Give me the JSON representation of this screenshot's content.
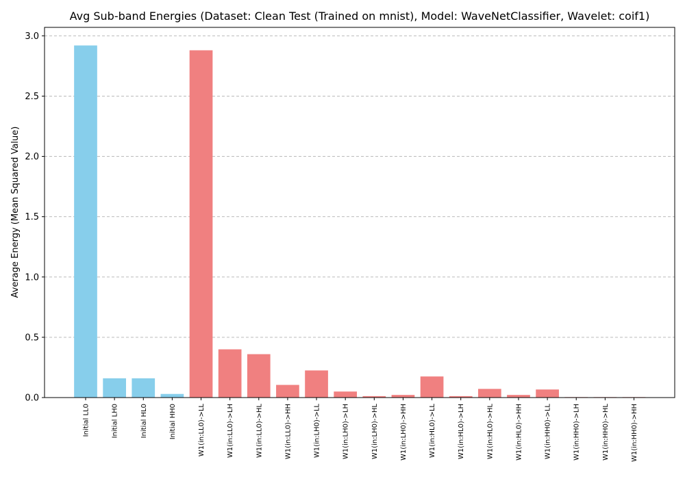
{
  "chart_data": {
    "type": "bar",
    "title": "Avg Sub-band Energies (Dataset: Clean Test (Trained on mnist), Model: WaveNetClassifier, Wavelet: coif1)",
    "xlabel": "",
    "ylabel": "Average Energy (Mean Squared Value)",
    "ylim": [
      0,
      3.07
    ],
    "yticks": [
      0.0,
      0.5,
      1.0,
      1.5,
      2.0,
      2.5,
      3.0
    ],
    "ytick_labels": [
      "0.0",
      "0.5",
      "1.0",
      "1.5",
      "2.0",
      "2.5",
      "3.0"
    ],
    "grid": "y-dashed",
    "categories": [
      "Initial LL0",
      "Initial LH0",
      "Initial HL0",
      "Initial HH0",
      "W1(in:LL0)->LL",
      "W1(in:LL0)->LH",
      "W1(in:LL0)->HL",
      "W1(in:LL0)->HH",
      "W1(in:LH0)->LL",
      "W1(in:LH0)->LH",
      "W1(in:LH0)->HL",
      "W1(in:LH0)->HH",
      "W1(in:HL0)->LL",
      "W1(in:HL0)->LH",
      "W1(in:HL0)->HL",
      "W1(in:HL0)->HH",
      "W1(in:HH0)->LL",
      "W1(in:HH0)->LH",
      "W1(in:HH0)->HL",
      "W1(in:HH0)->HH"
    ],
    "values": [
      2.92,
      0.16,
      0.16,
      0.03,
      2.88,
      0.4,
      0.36,
      0.105,
      0.225,
      0.05,
      0.012,
      0.022,
      0.175,
      0.012,
      0.072,
      0.022,
      0.067,
      0.004,
      0.004,
      0.004
    ],
    "colors": [
      "#87ceeb",
      "#87ceeb",
      "#87ceeb",
      "#87ceeb",
      "#f08080",
      "#f08080",
      "#f08080",
      "#f08080",
      "#f08080",
      "#f08080",
      "#f08080",
      "#f08080",
      "#f08080",
      "#f08080",
      "#f08080",
      "#f08080",
      "#f08080",
      "#f08080",
      "#f08080",
      "#f08080"
    ]
  }
}
